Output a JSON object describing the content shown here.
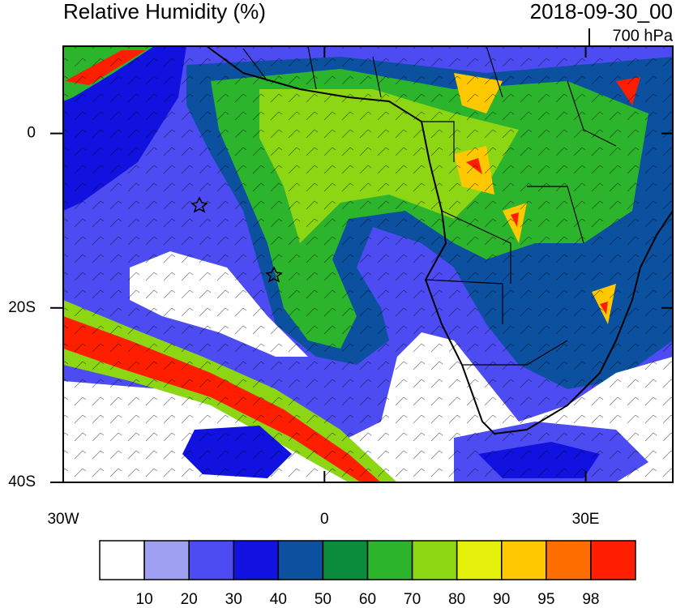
{
  "title": "Relative Humidity (%)",
  "valid_time": "2018-09-30_00",
  "level": "700 hPa",
  "map": {
    "lon_range": [
      -30,
      40
    ],
    "lat_range": [
      -40,
      10
    ],
    "lon_ticks": [
      {
        "value": -30,
        "label": "30W"
      },
      {
        "value": 0,
        "label": "0"
      },
      {
        "value": 30,
        "label": "30E"
      }
    ],
    "lat_ticks": [
      {
        "value": 0,
        "label": "0"
      },
      {
        "value": -20,
        "label": "20S"
      },
      {
        "value": -40,
        "label": "40S"
      }
    ]
  },
  "colorbar": {
    "levels": [
      10,
      20,
      30,
      40,
      50,
      60,
      70,
      80,
      90,
      95,
      98
    ],
    "colors": [
      "#ffffff",
      "#a0a0f2",
      "#4c4cf2",
      "#1212e0",
      "#0c50a0",
      "#0a8c3c",
      "#2db42d",
      "#8cd614",
      "#e4f00a",
      "#ffc800",
      "#ff6e00",
      "#ff1e00"
    ]
  }
}
